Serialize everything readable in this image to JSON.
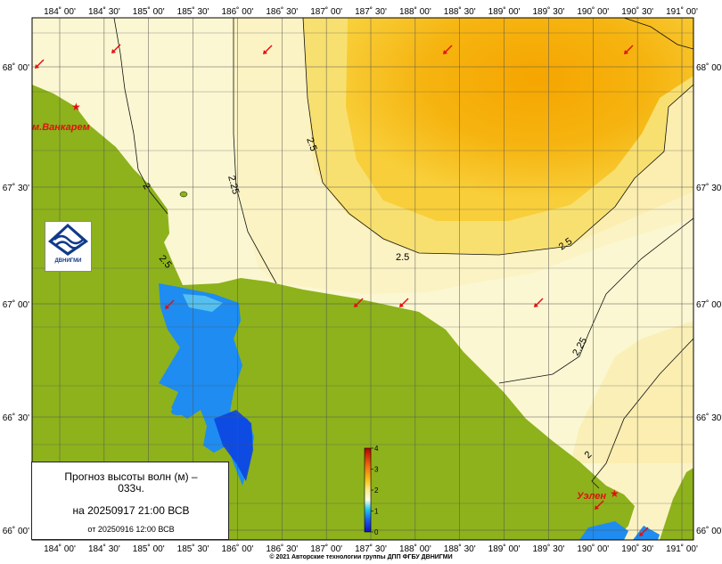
{
  "title": {
    "line1": "Прогноз высоты волн (м) –",
    "line2": "033ч.",
    "valid": "на 20250917 21:00 ВСВ",
    "issued": "от 20250916 12:00 ВСВ"
  },
  "logo_text": "ДВНИГМИ",
  "copyright": "© 2021 Авторские технологии группы ДПП ФГБУ ДВНИГМИ",
  "lon_ticks": [
    "184˚ 00'",
    "184˚ 30'",
    "185˚ 00'",
    "185˚ 30'",
    "186˚ 00'",
    "186˚ 30'",
    "187˚ 00'",
    "187˚ 30'",
    "188˚ 00'",
    "188˚ 30'",
    "189˚ 00'",
    "189˚ 30'",
    "190˚ 00'",
    "190˚ 30'",
    "191˚ 00'"
  ],
  "lat_ticks": [
    "68˚ 00'",
    "67˚ 30'",
    "67˚ 00'",
    "66˚ 30'",
    "66˚ 00'"
  ],
  "places": [
    {
      "name": "м.Ванкарем"
    },
    {
      "name": "Уэлен"
    }
  ],
  "contour_labels": [
    "2",
    "2.25",
    "2.5",
    "2.5",
    "2.5",
    "2.25",
    "2",
    "2.5"
  ],
  "colorbar": {
    "ticks": [
      "4",
      "3",
      "2",
      "1",
      "0"
    ],
    "range": [
      0,
      4
    ],
    "unit": "m"
  },
  "colors": {
    "land": "#8db21c",
    "sea_low": "#fbf7d2",
    "sea_mid": "#f7e99a",
    "sea_high": "#f6c21a",
    "sea_peak": "#f5a500",
    "lagoon": "#1e8cf0",
    "lagoon_deep": "#0a3fe0",
    "arrows": "#e01010"
  }
}
